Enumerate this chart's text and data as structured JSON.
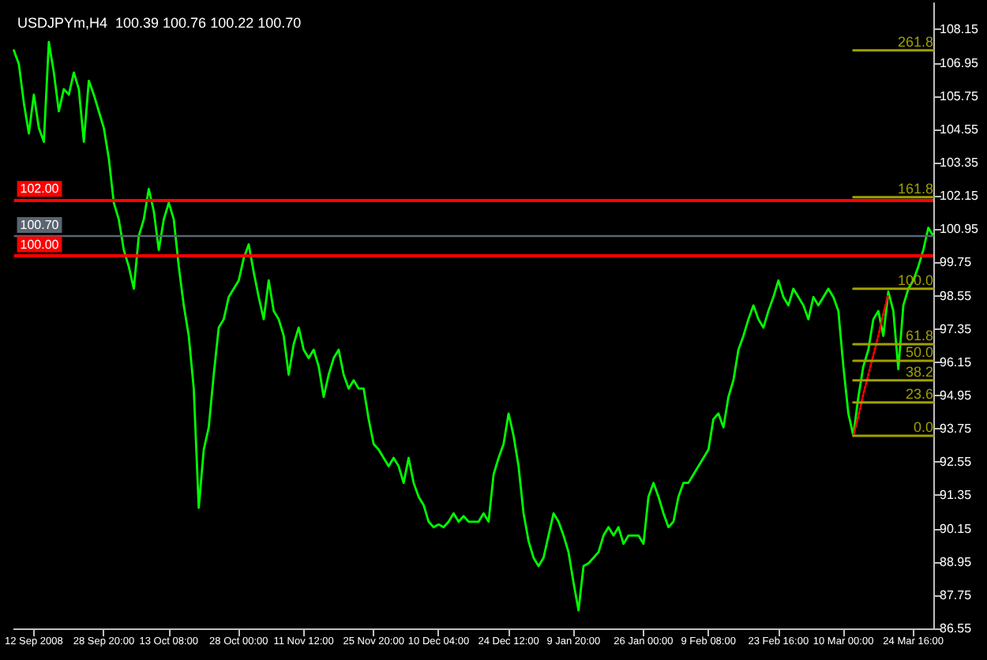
{
  "chart_data": {
    "type": "line",
    "title": "USDJPYm,H4  100.39 100.76 100.22 100.70",
    "marker": "none",
    "ylim": [
      86.55,
      109.1
    ],
    "yticks": [
      86.55,
      87.75,
      88.95,
      90.15,
      91.35,
      92.55,
      93.75,
      94.95,
      96.15,
      97.35,
      98.55,
      99.75,
      100.95,
      102.15,
      103.35,
      104.55,
      105.75,
      106.95,
      108.15
    ],
    "categories": [
      null,
      null,
      null,
      null,
      "12 Sep 2008",
      null,
      null,
      null,
      null,
      null,
      null,
      null,
      null,
      null,
      null,
      null,
      null,
      null,
      "28 Sep 20:00",
      null,
      null,
      null,
      null,
      null,
      null,
      null,
      null,
      null,
      null,
      null,
      null,
      "13 Oct 08:00",
      null,
      null,
      null,
      null,
      null,
      null,
      null,
      null,
      null,
      null,
      null,
      null,
      null,
      "28 Oct 00:00",
      null,
      null,
      null,
      null,
      null,
      null,
      null,
      null,
      null,
      null,
      null,
      null,
      "11 Nov 12:00",
      null,
      null,
      null,
      null,
      null,
      null,
      null,
      null,
      null,
      null,
      null,
      null,
      null,
      "25 Nov 20:00",
      null,
      null,
      null,
      null,
      null,
      null,
      null,
      null,
      null,
      null,
      null,
      null,
      "10 Dec 04:00",
      null,
      null,
      null,
      null,
      null,
      null,
      null,
      null,
      null,
      null,
      null,
      null,
      null,
      "24 Dec 12:00",
      null,
      null,
      null,
      null,
      null,
      null,
      null,
      null,
      null,
      null,
      null,
      null,
      "9 Jan 20:00",
      null,
      null,
      null,
      null,
      null,
      null,
      null,
      null,
      null,
      null,
      null,
      null,
      null,
      "26 Jan 00:00",
      null,
      null,
      null,
      null,
      null,
      null,
      null,
      null,
      null,
      null,
      null,
      null,
      "9 Feb 08:00",
      null,
      null,
      null,
      null,
      null,
      null,
      null,
      null,
      null,
      null,
      null,
      null,
      null,
      "23 Feb 16:00",
      null,
      null,
      null,
      null,
      null,
      null,
      null,
      null,
      null,
      null,
      null,
      null,
      "10 Mar 00:00",
      null,
      null,
      null,
      null,
      null,
      null,
      null,
      null,
      null,
      null,
      null,
      null,
      null,
      "24 Mar 16:00",
      null,
      null,
      null,
      null
    ],
    "series": [
      {
        "color": "#00ff00",
        "values": [
          107.4,
          106.9,
          105.5,
          104.4,
          105.8,
          104.6,
          104.1,
          107.7,
          106.6,
          105.2,
          106.0,
          105.8,
          106.6,
          106.0,
          104.1,
          106.3,
          105.8,
          105.2,
          104.6,
          103.5,
          101.9,
          101.3,
          100.2,
          99.6,
          98.8,
          100.7,
          101.3,
          102.4,
          101.6,
          100.2,
          101.3,
          101.9,
          101.3,
          99.6,
          98.2,
          97.1,
          95.2,
          90.9,
          93.0,
          93.8,
          95.7,
          97.4,
          97.7,
          98.5,
          98.8,
          99.1,
          99.9,
          100.4,
          99.4,
          98.5,
          97.7,
          99.1,
          98.0,
          97.7,
          97.1,
          95.7,
          96.8,
          97.4,
          96.6,
          96.3,
          96.6,
          96.0,
          94.9,
          95.7,
          96.3,
          96.6,
          95.7,
          95.2,
          95.5,
          95.2,
          95.2,
          94.1,
          93.2,
          93.0,
          92.7,
          92.4,
          92.7,
          92.4,
          91.8,
          92.7,
          91.8,
          91.3,
          91.0,
          90.4,
          90.2,
          90.3,
          90.2,
          90.4,
          90.7,
          90.4,
          90.6,
          90.4,
          90.4,
          90.4,
          90.7,
          90.4,
          92.1,
          92.7,
          93.2,
          94.3,
          93.5,
          92.4,
          90.7,
          89.7,
          89.1,
          88.8,
          89.1,
          89.9,
          90.7,
          90.4,
          89.9,
          89.3,
          88.2,
          87.2,
          88.8,
          88.9,
          89.1,
          89.3,
          89.9,
          90.2,
          89.9,
          90.2,
          89.6,
          89.9,
          89.9,
          89.9,
          89.6,
          91.3,
          91.8,
          91.3,
          90.7,
          90.2,
          90.4,
          91.3,
          91.8,
          91.8,
          92.1,
          92.4,
          92.7,
          93.0,
          94.1,
          94.3,
          93.8,
          94.9,
          95.5,
          96.6,
          97.1,
          97.7,
          98.2,
          97.7,
          97.4,
          98.0,
          98.5,
          99.1,
          98.5,
          98.2,
          98.8,
          98.5,
          98.2,
          97.7,
          98.5,
          98.2,
          98.5,
          98.8,
          98.5,
          98.0,
          96.0,
          94.3,
          93.5,
          94.9,
          96.0,
          96.6,
          97.7,
          98.0,
          97.1,
          98.7,
          98.0,
          95.9,
          98.2,
          98.8,
          99.1,
          99.6,
          100.2,
          101.0,
          100.7
        ]
      },
      {
        "color": "#ff0000",
        "line_style": "dotted",
        "values": [
          null,
          null,
          null,
          null,
          null,
          null,
          null,
          null,
          null,
          null,
          null,
          null,
          null,
          null,
          null,
          null,
          null,
          null,
          null,
          null,
          null,
          null,
          null,
          null,
          null,
          null,
          null,
          null,
          null,
          null,
          null,
          null,
          null,
          null,
          null,
          null,
          null,
          null,
          null,
          null,
          null,
          null,
          null,
          null,
          null,
          null,
          null,
          null,
          null,
          null,
          null,
          null,
          null,
          null,
          null,
          null,
          null,
          null,
          null,
          null,
          null,
          null,
          null,
          null,
          null,
          null,
          null,
          null,
          null,
          null,
          null,
          null,
          null,
          null,
          null,
          null,
          null,
          null,
          null,
          null,
          null,
          null,
          null,
          null,
          null,
          null,
          null,
          null,
          null,
          null,
          null,
          null,
          null,
          null,
          null,
          null,
          null,
          null,
          null,
          null,
          null,
          null,
          null,
          null,
          null,
          null,
          null,
          null,
          null,
          null,
          null,
          null,
          null,
          null,
          null,
          null,
          null,
          null,
          null,
          null,
          null,
          null,
          null,
          null,
          null,
          null,
          null,
          null,
          null,
          null,
          null,
          null,
          null,
          null,
          null,
          null,
          null,
          null,
          null,
          null,
          null,
          null,
          null,
          null,
          null,
          null,
          null,
          null,
          null,
          null,
          null,
          null,
          null,
          null,
          null,
          null,
          null,
          null,
          null,
          null,
          null,
          null,
          null,
          null,
          null,
          null,
          null,
          null,
          93.5,
          94.2,
          95.0,
          95.7,
          96.4,
          97.1,
          97.9,
          98.6,
          null,
          null,
          null,
          null,
          null,
          null,
          null,
          null,
          null
        ]
      },
      {
        "name": "261.8",
        "color": "#a0a000",
        "values": [
          null,
          null,
          null,
          null,
          null,
          null,
          null,
          null,
          null,
          null,
          null,
          null,
          null,
          null,
          null,
          null,
          null,
          null,
          null,
          null,
          null,
          null,
          null,
          null,
          null,
          null,
          null,
          null,
          null,
          null,
          null,
          null,
          null,
          null,
          null,
          null,
          null,
          null,
          null,
          null,
          null,
          null,
          null,
          null,
          null,
          null,
          null,
          null,
          null,
          null,
          null,
          null,
          null,
          null,
          null,
          null,
          null,
          null,
          null,
          null,
          null,
          null,
          null,
          null,
          null,
          null,
          null,
          null,
          null,
          null,
          null,
          null,
          null,
          null,
          null,
          null,
          null,
          null,
          null,
          null,
          null,
          null,
          null,
          null,
          null,
          null,
          null,
          null,
          null,
          null,
          null,
          null,
          null,
          null,
          null,
          null,
          null,
          null,
          null,
          null,
          null,
          null,
          null,
          null,
          null,
          null,
          null,
          null,
          null,
          null,
          null,
          null,
          null,
          null,
          null,
          null,
          null,
          null,
          null,
          null,
          null,
          null,
          null,
          null,
          null,
          null,
          null,
          null,
          null,
          null,
          null,
          null,
          null,
          null,
          null,
          null,
          null,
          null,
          null,
          null,
          null,
          null,
          null,
          null,
          null,
          null,
          null,
          null,
          null,
          null,
          null,
          null,
          null,
          null,
          null,
          null,
          null,
          null,
          null,
          null,
          null,
          null,
          null,
          null,
          null,
          null,
          null,
          null,
          107.4,
          107.4,
          107.4,
          107.4,
          107.4,
          107.4,
          107.4,
          107.4,
          107.4,
          107.4,
          107.4,
          107.4,
          107.4,
          107.4,
          107.4,
          107.4,
          107.4
        ]
      },
      {
        "name": "161.8",
        "color": "#a0a000",
        "values": [
          null,
          null,
          null,
          null,
          null,
          null,
          null,
          null,
          null,
          null,
          null,
          null,
          null,
          null,
          null,
          null,
          null,
          null,
          null,
          null,
          null,
          null,
          null,
          null,
          null,
          null,
          null,
          null,
          null,
          null,
          null,
          null,
          null,
          null,
          null,
          null,
          null,
          null,
          null,
          null,
          null,
          null,
          null,
          null,
          null,
          null,
          null,
          null,
          null,
          null,
          null,
          null,
          null,
          null,
          null,
          null,
          null,
          null,
          null,
          null,
          null,
          null,
          null,
          null,
          null,
          null,
          null,
          null,
          null,
          null,
          null,
          null,
          null,
          null,
          null,
          null,
          null,
          null,
          null,
          null,
          null,
          null,
          null,
          null,
          null,
          null,
          null,
          null,
          null,
          null,
          null,
          null,
          null,
          null,
          null,
          null,
          null,
          null,
          null,
          null,
          null,
          null,
          null,
          null,
          null,
          null,
          null,
          null,
          null,
          null,
          null,
          null,
          null,
          null,
          null,
          null,
          null,
          null,
          null,
          null,
          null,
          null,
          null,
          null,
          null,
          null,
          null,
          null,
          null,
          null,
          null,
          null,
          null,
          null,
          null,
          null,
          null,
          null,
          null,
          null,
          null,
          null,
          null,
          null,
          null,
          null,
          null,
          null,
          null,
          null,
          null,
          null,
          null,
          null,
          null,
          null,
          null,
          null,
          null,
          null,
          null,
          null,
          null,
          null,
          null,
          null,
          null,
          null,
          102.1,
          102.1,
          102.1,
          102.1,
          102.1,
          102.1,
          102.1,
          102.1,
          102.1,
          102.1,
          102.1,
          102.1,
          102.1,
          102.1,
          102.1,
          102.1,
          102.1
        ]
      },
      {
        "name": "100.0",
        "color": "#a0a000",
        "values": [
          null,
          null,
          null,
          null,
          null,
          null,
          null,
          null,
          null,
          null,
          null,
          null,
          null,
          null,
          null,
          null,
          null,
          null,
          null,
          null,
          null,
          null,
          null,
          null,
          null,
          null,
          null,
          null,
          null,
          null,
          null,
          null,
          null,
          null,
          null,
          null,
          null,
          null,
          null,
          null,
          null,
          null,
          null,
          null,
          null,
          null,
          null,
          null,
          null,
          null,
          null,
          null,
          null,
          null,
          null,
          null,
          null,
          null,
          null,
          null,
          null,
          null,
          null,
          null,
          null,
          null,
          null,
          null,
          null,
          null,
          null,
          null,
          null,
          null,
          null,
          null,
          null,
          null,
          null,
          null,
          null,
          null,
          null,
          null,
          null,
          null,
          null,
          null,
          null,
          null,
          null,
          null,
          null,
          null,
          null,
          null,
          null,
          null,
          null,
          null,
          null,
          null,
          null,
          null,
          null,
          null,
          null,
          null,
          null,
          null,
          null,
          null,
          null,
          null,
          null,
          null,
          null,
          null,
          null,
          null,
          null,
          null,
          null,
          null,
          null,
          null,
          null,
          null,
          null,
          null,
          null,
          null,
          null,
          null,
          null,
          null,
          null,
          null,
          null,
          null,
          null,
          null,
          null,
          null,
          null,
          null,
          null,
          null,
          null,
          null,
          null,
          null,
          null,
          null,
          null,
          null,
          null,
          null,
          null,
          null,
          null,
          null,
          null,
          null,
          null,
          null,
          null,
          null,
          98.8,
          98.8,
          98.8,
          98.8,
          98.8,
          98.8,
          98.8,
          98.8,
          98.8,
          98.8,
          98.8,
          98.8,
          98.8,
          98.8,
          98.8,
          98.8,
          98.8
        ]
      },
      {
        "name": "61.8",
        "color": "#a0a000",
        "values": [
          null,
          null,
          null,
          null,
          null,
          null,
          null,
          null,
          null,
          null,
          null,
          null,
          null,
          null,
          null,
          null,
          null,
          null,
          null,
          null,
          null,
          null,
          null,
          null,
          null,
          null,
          null,
          null,
          null,
          null,
          null,
          null,
          null,
          null,
          null,
          null,
          null,
          null,
          null,
          null,
          null,
          null,
          null,
          null,
          null,
          null,
          null,
          null,
          null,
          null,
          null,
          null,
          null,
          null,
          null,
          null,
          null,
          null,
          null,
          null,
          null,
          null,
          null,
          null,
          null,
          null,
          null,
          null,
          null,
          null,
          null,
          null,
          null,
          null,
          null,
          null,
          null,
          null,
          null,
          null,
          null,
          null,
          null,
          null,
          null,
          null,
          null,
          null,
          null,
          null,
          null,
          null,
          null,
          null,
          null,
          null,
          null,
          null,
          null,
          null,
          null,
          null,
          null,
          null,
          null,
          null,
          null,
          null,
          null,
          null,
          null,
          null,
          null,
          null,
          null,
          null,
          null,
          null,
          null,
          null,
          null,
          null,
          null,
          null,
          null,
          null,
          null,
          null,
          null,
          null,
          null,
          null,
          null,
          null,
          null,
          null,
          null,
          null,
          null,
          null,
          null,
          null,
          null,
          null,
          null,
          null,
          null,
          null,
          null,
          null,
          null,
          null,
          null,
          null,
          null,
          null,
          null,
          null,
          null,
          null,
          null,
          null,
          null,
          null,
          null,
          null,
          null,
          null,
          96.8,
          96.8,
          96.8,
          96.8,
          96.8,
          96.8,
          96.8,
          96.8,
          96.8,
          96.8,
          96.8,
          96.8,
          96.8,
          96.8,
          96.8,
          96.8,
          96.8
        ]
      },
      {
        "name": "50.0",
        "color": "#a0a000",
        "values": [
          null,
          null,
          null,
          null,
          null,
          null,
          null,
          null,
          null,
          null,
          null,
          null,
          null,
          null,
          null,
          null,
          null,
          null,
          null,
          null,
          null,
          null,
          null,
          null,
          null,
          null,
          null,
          null,
          null,
          null,
          null,
          null,
          null,
          null,
          null,
          null,
          null,
          null,
          null,
          null,
          null,
          null,
          null,
          null,
          null,
          null,
          null,
          null,
          null,
          null,
          null,
          null,
          null,
          null,
          null,
          null,
          null,
          null,
          null,
          null,
          null,
          null,
          null,
          null,
          null,
          null,
          null,
          null,
          null,
          null,
          null,
          null,
          null,
          null,
          null,
          null,
          null,
          null,
          null,
          null,
          null,
          null,
          null,
          null,
          null,
          null,
          null,
          null,
          null,
          null,
          null,
          null,
          null,
          null,
          null,
          null,
          null,
          null,
          null,
          null,
          null,
          null,
          null,
          null,
          null,
          null,
          null,
          null,
          null,
          null,
          null,
          null,
          null,
          null,
          null,
          null,
          null,
          null,
          null,
          null,
          null,
          null,
          null,
          null,
          null,
          null,
          null,
          null,
          null,
          null,
          null,
          null,
          null,
          null,
          null,
          null,
          null,
          null,
          null,
          null,
          null,
          null,
          null,
          null,
          null,
          null,
          null,
          null,
          null,
          null,
          null,
          null,
          null,
          null,
          null,
          null,
          null,
          null,
          null,
          null,
          null,
          null,
          null,
          null,
          null,
          null,
          null,
          null,
          96.2,
          96.2,
          96.2,
          96.2,
          96.2,
          96.2,
          96.2,
          96.2,
          96.2,
          96.2,
          96.2,
          96.2,
          96.2,
          96.2,
          96.2,
          96.2,
          96.2
        ]
      },
      {
        "name": "38.2",
        "color": "#a0a000",
        "values": [
          null,
          null,
          null,
          null,
          null,
          null,
          null,
          null,
          null,
          null,
          null,
          null,
          null,
          null,
          null,
          null,
          null,
          null,
          null,
          null,
          null,
          null,
          null,
          null,
          null,
          null,
          null,
          null,
          null,
          null,
          null,
          null,
          null,
          null,
          null,
          null,
          null,
          null,
          null,
          null,
          null,
          null,
          null,
          null,
          null,
          null,
          null,
          null,
          null,
          null,
          null,
          null,
          null,
          null,
          null,
          null,
          null,
          null,
          null,
          null,
          null,
          null,
          null,
          null,
          null,
          null,
          null,
          null,
          null,
          null,
          null,
          null,
          null,
          null,
          null,
          null,
          null,
          null,
          null,
          null,
          null,
          null,
          null,
          null,
          null,
          null,
          null,
          null,
          null,
          null,
          null,
          null,
          null,
          null,
          null,
          null,
          null,
          null,
          null,
          null,
          null,
          null,
          null,
          null,
          null,
          null,
          null,
          null,
          null,
          null,
          null,
          null,
          null,
          null,
          null,
          null,
          null,
          null,
          null,
          null,
          null,
          null,
          null,
          null,
          null,
          null,
          null,
          null,
          null,
          null,
          null,
          null,
          null,
          null,
          null,
          null,
          null,
          null,
          null,
          null,
          null,
          null,
          null,
          null,
          null,
          null,
          null,
          null,
          null,
          null,
          null,
          null,
          null,
          null,
          null,
          null,
          null,
          null,
          null,
          null,
          null,
          null,
          null,
          null,
          null,
          null,
          null,
          null,
          95.5,
          95.5,
          95.5,
          95.5,
          95.5,
          95.5,
          95.5,
          95.5,
          95.5,
          95.5,
          95.5,
          95.5,
          95.5,
          95.5,
          95.5,
          95.5,
          95.5
        ]
      },
      {
        "name": "23.6",
        "color": "#a0a000",
        "values": [
          null,
          null,
          null,
          null,
          null,
          null,
          null,
          null,
          null,
          null,
          null,
          null,
          null,
          null,
          null,
          null,
          null,
          null,
          null,
          null,
          null,
          null,
          null,
          null,
          null,
          null,
          null,
          null,
          null,
          null,
          null,
          null,
          null,
          null,
          null,
          null,
          null,
          null,
          null,
          null,
          null,
          null,
          null,
          null,
          null,
          null,
          null,
          null,
          null,
          null,
          null,
          null,
          null,
          null,
          null,
          null,
          null,
          null,
          null,
          null,
          null,
          null,
          null,
          null,
          null,
          null,
          null,
          null,
          null,
          null,
          null,
          null,
          null,
          null,
          null,
          null,
          null,
          null,
          null,
          null,
          null,
          null,
          null,
          null,
          null,
          null,
          null,
          null,
          null,
          null,
          null,
          null,
          null,
          null,
          null,
          null,
          null,
          null,
          null,
          null,
          null,
          null,
          null,
          null,
          null,
          null,
          null,
          null,
          null,
          null,
          null,
          null,
          null,
          null,
          null,
          null,
          null,
          null,
          null,
          null,
          null,
          null,
          null,
          null,
          null,
          null,
          null,
          null,
          null,
          null,
          null,
          null,
          null,
          null,
          null,
          null,
          null,
          null,
          null,
          null,
          null,
          null,
          null,
          null,
          null,
          null,
          null,
          null,
          null,
          null,
          null,
          null,
          null,
          null,
          null,
          null,
          null,
          null,
          null,
          null,
          null,
          null,
          null,
          null,
          null,
          null,
          null,
          null,
          94.7,
          94.7,
          94.7,
          94.7,
          94.7,
          94.7,
          94.7,
          94.7,
          94.7,
          94.7,
          94.7,
          94.7,
          94.7,
          94.7,
          94.7,
          94.7,
          94.7
        ]
      },
      {
        "name": "0.0",
        "color": "#a0a000",
        "values": [
          null,
          null,
          null,
          null,
          null,
          null,
          null,
          null,
          null,
          null,
          null,
          null,
          null,
          null,
          null,
          null,
          null,
          null,
          null,
          null,
          null,
          null,
          null,
          null,
          null,
          null,
          null,
          null,
          null,
          null,
          null,
          null,
          null,
          null,
          null,
          null,
          null,
          null,
          null,
          null,
          null,
          null,
          null,
          null,
          null,
          null,
          null,
          null,
          null,
          null,
          null,
          null,
          null,
          null,
          null,
          null,
          null,
          null,
          null,
          null,
          null,
          null,
          null,
          null,
          null,
          null,
          null,
          null,
          null,
          null,
          null,
          null,
          null,
          null,
          null,
          null,
          null,
          null,
          null,
          null,
          null,
          null,
          null,
          null,
          null,
          null,
          null,
          null,
          null,
          null,
          null,
          null,
          null,
          null,
          null,
          null,
          null,
          null,
          null,
          null,
          null,
          null,
          null,
          null,
          null,
          null,
          null,
          null,
          null,
          null,
          null,
          null,
          null,
          null,
          null,
          null,
          null,
          null,
          null,
          null,
          null,
          null,
          null,
          null,
          null,
          null,
          null,
          null,
          null,
          null,
          null,
          null,
          null,
          null,
          null,
          null,
          null,
          null,
          null,
          null,
          null,
          null,
          null,
          null,
          null,
          null,
          null,
          null,
          null,
          null,
          null,
          null,
          null,
          null,
          null,
          null,
          null,
          null,
          null,
          null,
          null,
          null,
          null,
          null,
          null,
          null,
          null,
          null,
          93.5,
          93.5,
          93.5,
          93.5,
          93.5,
          93.5,
          93.5,
          93.5,
          93.5,
          93.5,
          93.5,
          93.5,
          93.5,
          93.5,
          93.5,
          93.5,
          93.5
        ]
      }
    ],
    "ref_lines": [
      {
        "axis": "y",
        "value": 102.0,
        "label": "102.00",
        "color": "#ff0000"
      },
      {
        "axis": "y",
        "value": 100.0,
        "label": "100.00",
        "color": "#ff0000"
      },
      {
        "axis": "y",
        "value": 100.7,
        "label": "100.70",
        "color": "#5a6570"
      }
    ]
  }
}
